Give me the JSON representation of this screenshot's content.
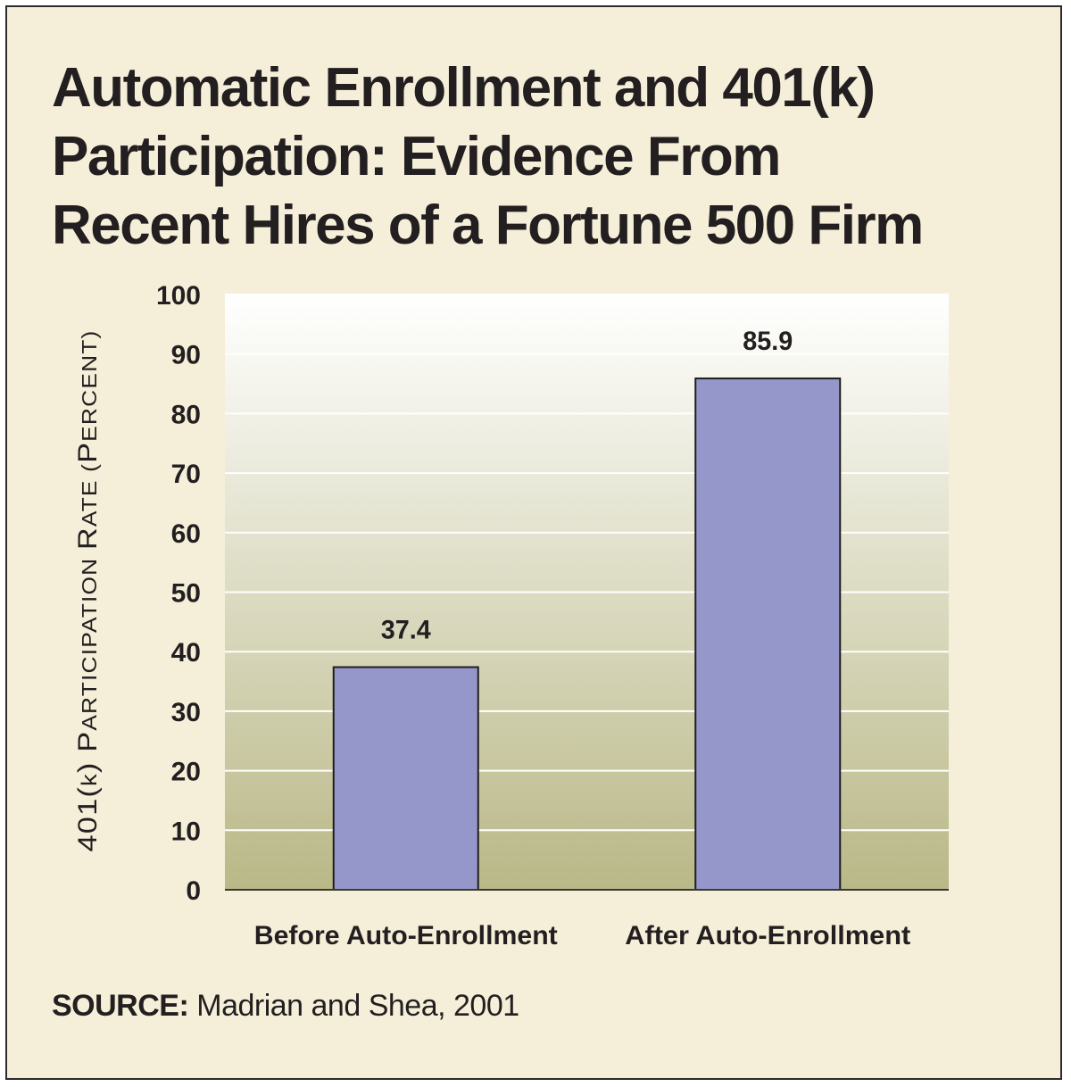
{
  "title_lines": [
    "Automatic Enrollment and 401(k)",
    "Participation: Evidence From",
    "Recent Hires of a Fortune 500 Firm"
  ],
  "source": {
    "label": "SOURCE:",
    "text": " Madrian and Shea, 2001"
  },
  "colors": {
    "background": "#f5efd9",
    "bar_fill": "#9597cb",
    "bar_stroke": "#1e1e1e",
    "plot_top": "#ffffff",
    "plot_bottom": "#b9b887",
    "grid": "#ffffff"
  },
  "chart_data": {
    "type": "bar",
    "title": "Automatic Enrollment and 401(k) Participation: Evidence From Recent Hires of a Fortune 500 Firm",
    "categories": [
      "Before Auto-Enrollment",
      "After Auto-Enrollment"
    ],
    "values": [
      37.4,
      85.9
    ],
    "data_labels": [
      "37.4",
      "85.9"
    ],
    "xlabel": "",
    "ylabel": "401(k) Participation Rate (Percent)",
    "ylabel_parts": {
      "lead": "401(",
      "k": "k",
      "mid": ") P",
      "rest1": "ARTICIPATION ",
      "R": "R",
      "rest2": "ATE (",
      "P": "P",
      "rest3": "ERCENT)"
    },
    "ylim": [
      0,
      100
    ],
    "yticks": [
      0,
      10,
      20,
      30,
      40,
      50,
      60,
      70,
      80,
      90,
      100
    ],
    "grid": true,
    "legend": "none"
  }
}
